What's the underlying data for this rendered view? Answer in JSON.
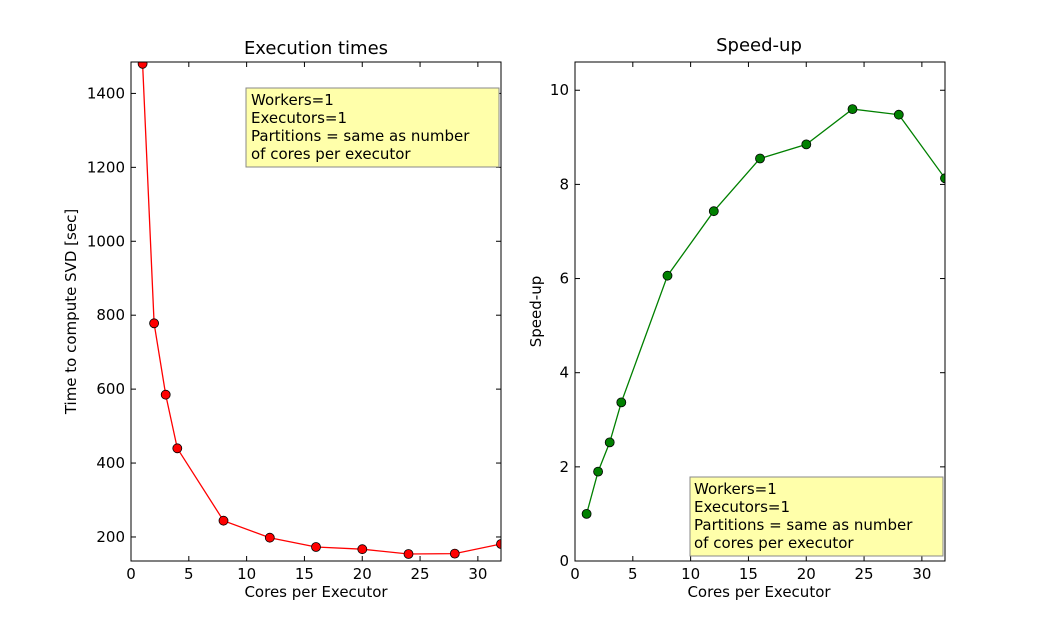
{
  "colors": {
    "left_series": "#ff0000",
    "right_series": "#008000",
    "annotation_bg": "#ffffaa"
  },
  "chart_data": [
    {
      "type": "line",
      "title": "Execution times",
      "xlabel": "Cores per Executor",
      "ylabel": "Time to compute SVD [sec]",
      "xlim": [
        0,
        32
      ],
      "ylim": [
        135,
        1485
      ],
      "xticks": [
        0,
        5,
        10,
        15,
        20,
        25,
        30
      ],
      "yticks": [
        200,
        400,
        600,
        800,
        1000,
        1200,
        1400
      ],
      "grid": false,
      "series": [
        {
          "color": "#ff0000",
          "marker": "circle",
          "x": [
            1,
            2,
            3,
            4,
            8,
            12,
            16,
            20,
            24,
            28,
            32
          ],
          "y": [
            1480,
            778,
            585,
            440,
            244,
            198,
            173,
            167,
            154,
            155,
            181
          ]
        }
      ],
      "annotation": {
        "lines": [
          "Workers=1",
          "Executors=1",
          "Partitions = same as number",
          "of cores per executor"
        ],
        "placement": "top-right"
      }
    },
    {
      "type": "line",
      "title": "Speed-up",
      "xlabel": "Cores per Executor",
      "ylabel": "Speed-up",
      "xlim": [
        0,
        32
      ],
      "ylim": [
        0,
        10.6
      ],
      "xticks": [
        0,
        5,
        10,
        15,
        20,
        25,
        30
      ],
      "yticks": [
        0,
        2,
        4,
        6,
        8,
        10
      ],
      "grid": false,
      "series": [
        {
          "color": "#008000",
          "marker": "circle",
          "x": [
            1,
            2,
            3,
            4,
            8,
            12,
            16,
            20,
            24,
            28,
            32
          ],
          "y": [
            1.0,
            1.9,
            2.52,
            3.37,
            6.06,
            7.43,
            8.55,
            8.85,
            9.6,
            9.48,
            8.13
          ]
        }
      ],
      "annotation": {
        "lines": [
          "Workers=1",
          "Executors=1",
          "Partitions = same as number",
          "of cores per executor"
        ],
        "placement": "bottom-right"
      }
    }
  ]
}
